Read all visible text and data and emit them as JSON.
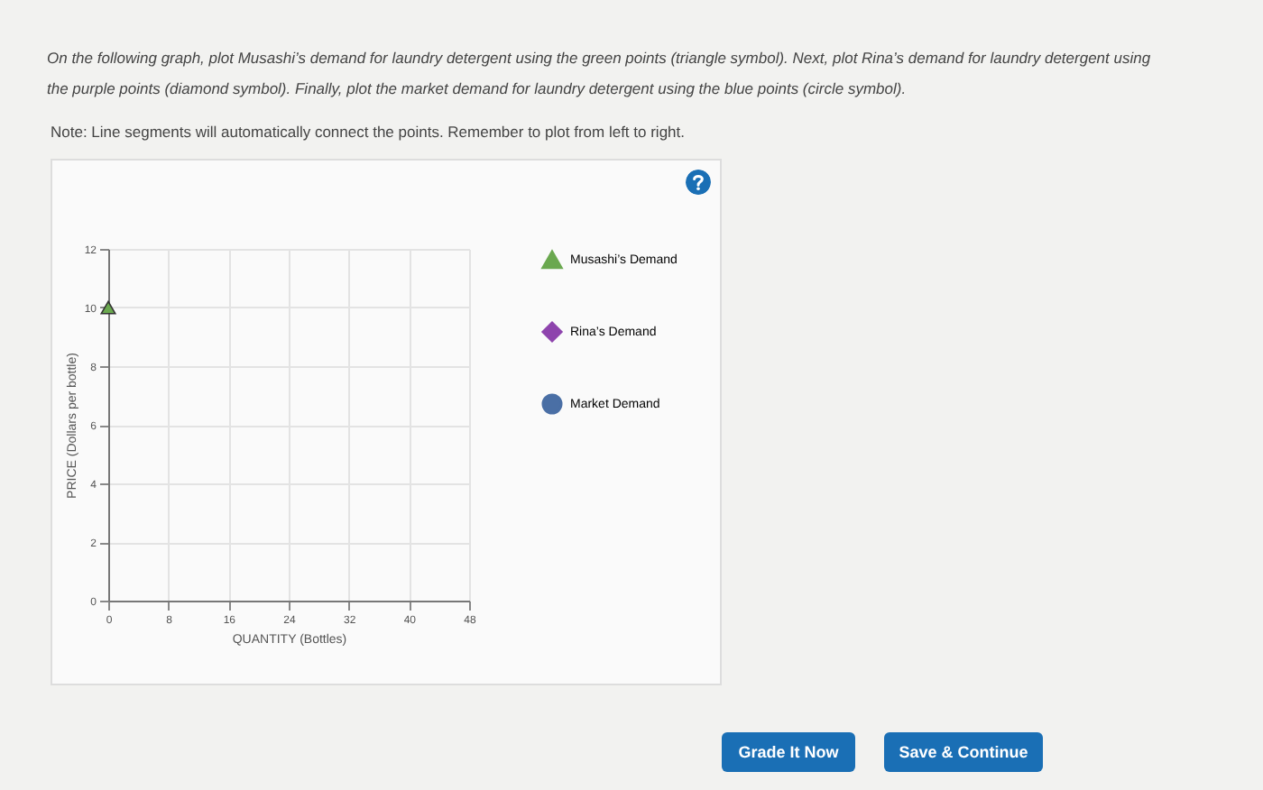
{
  "chart_data": {
    "type": "line",
    "xlabel": "QUANTITY (Bottles)",
    "ylabel": "PRICE (Dollars per bottle)",
    "annotations": [
      "On the following graph, plot Musashi’s demand for laundry detergent using the green points (triangle symbol). Next, plot Rina’s demand for laundry detergent using the purple points (diamond symbol). Finally, plot the market demand for laundry detergent using the blue points (circle symbol).",
      "Note: Line segments will automatically connect the points. Remember to plot from left to right.",
      "Grade It Now",
      "Save & Continue"
    ],
    "series": [
      {
        "name": "Musashi’s Demand",
        "color": "#6aa84f",
        "marker": "triangle",
        "x": [
          0
        ],
        "values": [
          10
        ]
      },
      {
        "name": "Rina’s Demand",
        "color": "#8e44ad",
        "marker": "diamond"
      },
      {
        "name": "Market Demand",
        "color": "#4a6fa5",
        "marker": "circle"
      }
    ],
    "xlim": [
      0,
      48
    ],
    "xticks": [
      0,
      8,
      16,
      24,
      32,
      40,
      48
    ],
    "ylim": [
      0,
      12
    ],
    "yticks": [
      0,
      2,
      4,
      6,
      8,
      10,
      12
    ],
    "grid": true,
    "legend": "right"
  }
}
